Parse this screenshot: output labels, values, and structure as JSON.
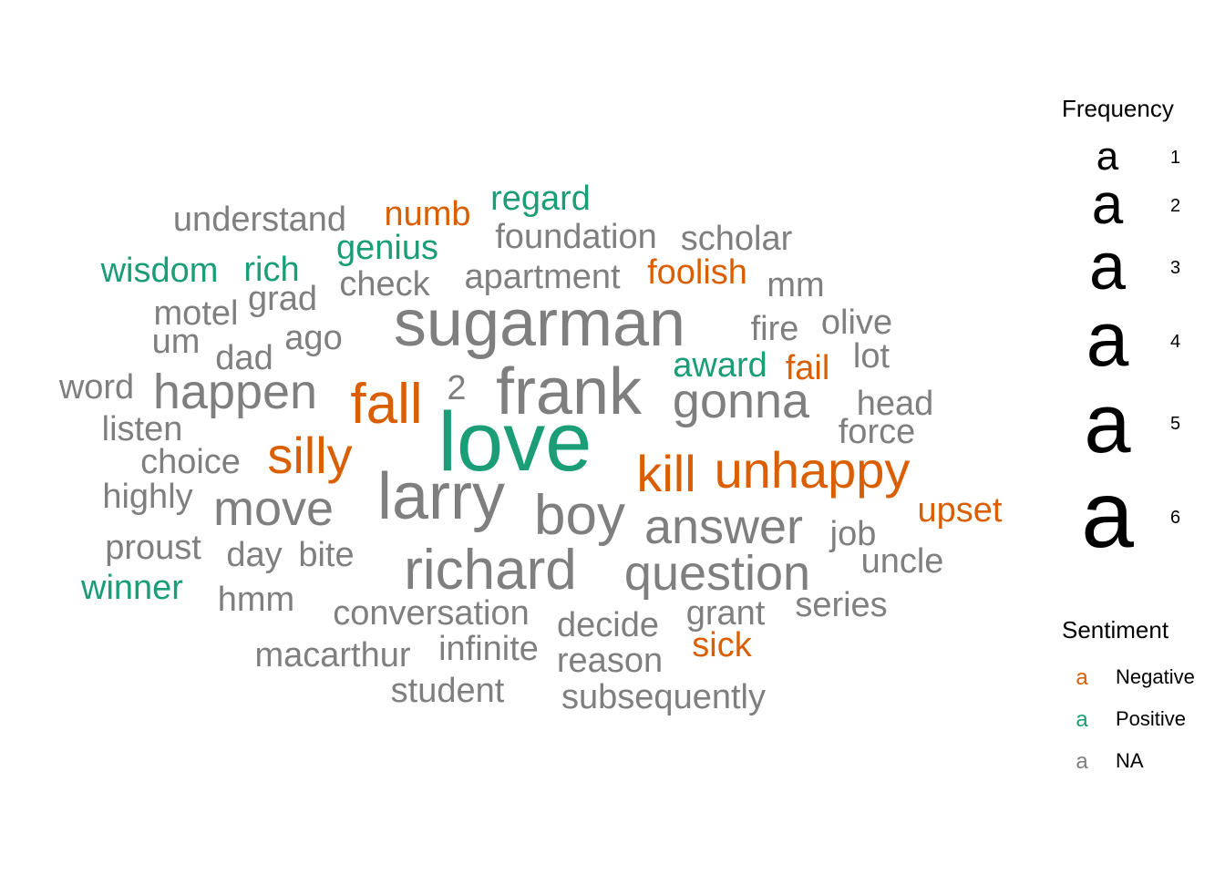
{
  "chart_data": {
    "type": "wordcloud",
    "title": "",
    "colors": {
      "Negative": "#D95F02",
      "Positive": "#1B9E77",
      "NA": "#7F7F7F",
      "legend_text": "#000000"
    },
    "legend": {
      "frequency_title": "Frequency",
      "frequency_levels": [
        1,
        2,
        3,
        4,
        5,
        6
      ],
      "sentiment_title": "Sentiment",
      "sentiment_levels": [
        "Negative",
        "Positive",
        "NA"
      ],
      "key_glyph": "a",
      "position": "right"
    },
    "words": [
      {
        "word": "love",
        "freq": 6,
        "sentiment": "Positive"
      },
      {
        "word": "sugarman",
        "freq": 5,
        "sentiment": "NA"
      },
      {
        "word": "frank",
        "freq": 5,
        "sentiment": "NA"
      },
      {
        "word": "larry",
        "freq": 5,
        "sentiment": "NA"
      },
      {
        "word": "fall",
        "freq": 4,
        "sentiment": "Negative"
      },
      {
        "word": "richard",
        "freq": 4,
        "sentiment": "NA"
      },
      {
        "word": "boy",
        "freq": 4,
        "sentiment": "NA"
      },
      {
        "word": "silly",
        "freq": 3,
        "sentiment": "Negative"
      },
      {
        "word": "kill",
        "freq": 3,
        "sentiment": "Negative"
      },
      {
        "word": "unhappy",
        "freq": 3,
        "sentiment": "Negative"
      },
      {
        "word": "happen",
        "freq": 3,
        "sentiment": "NA"
      },
      {
        "word": "move",
        "freq": 3,
        "sentiment": "NA"
      },
      {
        "word": "gonna",
        "freq": 3,
        "sentiment": "NA"
      },
      {
        "word": "answer",
        "freq": 3,
        "sentiment": "NA"
      },
      {
        "word": "question",
        "freq": 3,
        "sentiment": "NA"
      },
      {
        "word": "numb",
        "freq": 1,
        "sentiment": "Negative"
      },
      {
        "word": "foolish",
        "freq": 1,
        "sentiment": "Negative"
      },
      {
        "word": "fail",
        "freq": 1,
        "sentiment": "Negative"
      },
      {
        "word": "upset",
        "freq": 1,
        "sentiment": "Negative"
      },
      {
        "word": "sick",
        "freq": 1,
        "sentiment": "Negative"
      },
      {
        "word": "regard",
        "freq": 1,
        "sentiment": "Positive"
      },
      {
        "word": "genius",
        "freq": 1,
        "sentiment": "Positive"
      },
      {
        "word": "wisdom",
        "freq": 1,
        "sentiment": "Positive"
      },
      {
        "word": "rich",
        "freq": 1,
        "sentiment": "Positive"
      },
      {
        "word": "award",
        "freq": 1,
        "sentiment": "Positive"
      },
      {
        "word": "winner",
        "freq": 1,
        "sentiment": "Positive"
      },
      {
        "word": "understand",
        "freq": 1,
        "sentiment": "NA"
      },
      {
        "word": "foundation",
        "freq": 1,
        "sentiment": "NA"
      },
      {
        "word": "scholar",
        "freq": 1,
        "sentiment": "NA"
      },
      {
        "word": "check",
        "freq": 1,
        "sentiment": "NA"
      },
      {
        "word": "apartment",
        "freq": 1,
        "sentiment": "NA"
      },
      {
        "word": "mm",
        "freq": 1,
        "sentiment": "NA"
      },
      {
        "word": "motel",
        "freq": 1,
        "sentiment": "NA"
      },
      {
        "word": "grad",
        "freq": 1,
        "sentiment": "NA"
      },
      {
        "word": "um",
        "freq": 1,
        "sentiment": "NA"
      },
      {
        "word": "dad",
        "freq": 1,
        "sentiment": "NA"
      },
      {
        "word": "ago",
        "freq": 1,
        "sentiment": "NA"
      },
      {
        "word": "fire",
        "freq": 1,
        "sentiment": "NA"
      },
      {
        "word": "olive",
        "freq": 1,
        "sentiment": "NA"
      },
      {
        "word": "lot",
        "freq": 1,
        "sentiment": "NA"
      },
      {
        "word": "word",
        "freq": 1,
        "sentiment": "NA"
      },
      {
        "word": "2",
        "freq": 1,
        "sentiment": "NA"
      },
      {
        "word": "head",
        "freq": 1,
        "sentiment": "NA"
      },
      {
        "word": "listen",
        "freq": 1,
        "sentiment": "NA"
      },
      {
        "word": "force",
        "freq": 1,
        "sentiment": "NA"
      },
      {
        "word": "choice",
        "freq": 1,
        "sentiment": "NA"
      },
      {
        "word": "highly",
        "freq": 1,
        "sentiment": "NA"
      },
      {
        "word": "job",
        "freq": 1,
        "sentiment": "NA"
      },
      {
        "word": "proust",
        "freq": 1,
        "sentiment": "NA"
      },
      {
        "word": "day",
        "freq": 1,
        "sentiment": "NA"
      },
      {
        "word": "bite",
        "freq": 1,
        "sentiment": "NA"
      },
      {
        "word": "uncle",
        "freq": 1,
        "sentiment": "NA"
      },
      {
        "word": "hmm",
        "freq": 1,
        "sentiment": "NA"
      },
      {
        "word": "series",
        "freq": 1,
        "sentiment": "NA"
      },
      {
        "word": "conversation",
        "freq": 1,
        "sentiment": "NA"
      },
      {
        "word": "grant",
        "freq": 1,
        "sentiment": "NA"
      },
      {
        "word": "decide",
        "freq": 1,
        "sentiment": "NA"
      },
      {
        "word": "macarthur",
        "freq": 1,
        "sentiment": "NA"
      },
      {
        "word": "infinite",
        "freq": 1,
        "sentiment": "NA"
      },
      {
        "word": "reason",
        "freq": 1,
        "sentiment": "NA"
      },
      {
        "word": "student",
        "freq": 1,
        "sentiment": "NA"
      },
      {
        "word": "subsequently",
        "freq": 1,
        "sentiment": "NA"
      }
    ]
  }
}
